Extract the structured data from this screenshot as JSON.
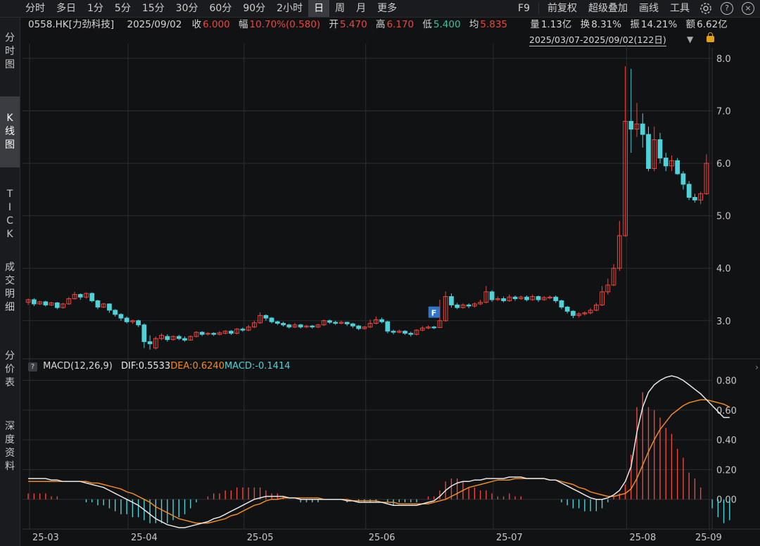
{
  "toolbar": {
    "timeframes": [
      "分时",
      "多日",
      "1分",
      "5分",
      "15分",
      "30分",
      "60分",
      "90分",
      "2小时",
      "日",
      "周",
      "月",
      "更多"
    ],
    "active_timeframe": "日",
    "right_tools": [
      "F9",
      "前复权",
      "超级叠加",
      "画线",
      "工具"
    ],
    "icons": [
      "gear-icon",
      "help-icon",
      "close-icon"
    ]
  },
  "quote": {
    "code": "0558.HK[力劲科技]",
    "date": "2025/09/02",
    "close_label": "收",
    "close": "6.000",
    "change_label": "幅",
    "change": "10.70%(0.580)",
    "open_label": "开",
    "open": "5.470",
    "high_label": "高",
    "high": "6.170",
    "low_label": "低",
    "low": "5.400",
    "avg_label": "均",
    "avg": "5.835",
    "volume_label": "量",
    "volume": "1.13亿",
    "turnover_label": "换",
    "turnover": "8.31%",
    "amplitude_label": "振",
    "amplitude": "14.21%",
    "amount_label": "额",
    "amount": "6.62亿"
  },
  "range_label": "2025/03/07-2025/09/02(122日)",
  "sidebar": [
    "分时图",
    "K线图",
    "TICK",
    "成交明细",
    "分价表",
    "深度资料"
  ],
  "sidebar_active": "K线图",
  "macd": {
    "name": "MACD(12,26,9)",
    "dif": "DIF:0.5533",
    "dea": "DEA:0.6240",
    "macd": "MACD:-0.1414"
  },
  "colors": {
    "up": "#f0453b",
    "down": "#4fd1d9",
    "dif": "#e8e8e8",
    "dea": "#f08a24",
    "grid": "#2c2d31"
  },
  "chart_data": [
    {
      "type": "candlestick",
      "title": "",
      "x_tick_labels": [
        "25-03",
        "25-04",
        "25-05",
        "25-06",
        "25-07",
        "25-08",
        "25-09"
      ],
      "y_ticks": [
        "8.0",
        "7.0",
        "6.0",
        "5.0",
        "4.0",
        "3.0"
      ],
      "ylim": [
        2.3,
        8.2
      ],
      "marker": "F",
      "candles": [
        [
          3.35,
          3.4,
          3.3,
          3.42
        ],
        [
          3.4,
          3.32,
          3.28,
          3.43
        ],
        [
          3.32,
          3.36,
          3.3,
          3.38
        ],
        [
          3.36,
          3.3,
          3.27,
          3.38
        ],
        [
          3.3,
          3.34,
          3.28,
          3.36
        ],
        [
          3.34,
          3.25,
          3.22,
          3.36
        ],
        [
          3.25,
          3.32,
          3.23,
          3.34
        ],
        [
          3.32,
          3.42,
          3.3,
          3.45
        ],
        [
          3.42,
          3.5,
          3.4,
          3.55
        ],
        [
          3.5,
          3.45,
          3.4,
          3.52
        ],
        [
          3.45,
          3.52,
          3.42,
          3.54
        ],
        [
          3.52,
          3.38,
          3.35,
          3.54
        ],
        [
          3.38,
          3.26,
          3.22,
          3.4
        ],
        [
          3.26,
          3.32,
          3.24,
          3.34
        ],
        [
          3.32,
          3.2,
          3.15,
          3.33
        ],
        [
          3.2,
          3.12,
          3.08,
          3.22
        ],
        [
          3.12,
          3.05,
          3.0,
          3.14
        ],
        [
          3.05,
          2.98,
          2.95,
          3.08
        ],
        [
          2.98,
          3.0,
          2.94,
          3.02
        ],
        [
          3.0,
          2.92,
          2.88,
          3.02
        ],
        [
          2.92,
          2.6,
          2.48,
          2.95
        ],
        [
          2.6,
          2.56,
          2.45,
          2.72
        ],
        [
          2.48,
          2.66,
          2.45,
          2.7
        ],
        [
          2.66,
          2.72,
          2.63,
          2.76
        ],
        [
          2.7,
          2.64,
          2.6,
          2.74
        ],
        [
          2.64,
          2.7,
          2.62,
          2.72
        ],
        [
          2.7,
          2.66,
          2.63,
          2.73
        ],
        [
          2.66,
          2.63,
          2.6,
          2.7
        ],
        [
          2.63,
          2.7,
          2.62,
          2.72
        ],
        [
          2.7,
          2.78,
          2.68,
          2.8
        ],
        [
          2.78,
          2.74,
          2.71,
          2.8
        ],
        [
          2.75,
          2.76,
          2.72,
          2.78
        ],
        [
          2.76,
          2.74,
          2.71,
          2.78
        ],
        [
          2.74,
          2.77,
          2.72,
          2.8
        ],
        [
          2.76,
          2.8,
          2.74,
          2.82
        ],
        [
          2.8,
          2.76,
          2.73,
          2.82
        ],
        [
          2.76,
          2.84,
          2.74,
          2.86
        ],
        [
          2.84,
          2.82,
          2.79,
          2.87
        ],
        [
          2.82,
          2.88,
          2.8,
          2.92
        ],
        [
          2.88,
          2.96,
          2.86,
          3.0
        ],
        [
          2.96,
          3.1,
          2.94,
          3.16
        ],
        [
          3.1,
          3.05,
          3.0,
          3.12
        ],
        [
          3.05,
          2.98,
          2.95,
          3.07
        ],
        [
          2.98,
          2.95,
          2.92,
          3.0
        ],
        [
          2.95,
          2.92,
          2.89,
          2.98
        ],
        [
          2.92,
          2.88,
          2.85,
          2.94
        ],
        [
          2.88,
          2.92,
          2.86,
          2.96
        ],
        [
          2.92,
          2.88,
          2.85,
          2.94
        ],
        [
          2.88,
          2.9,
          2.86,
          2.92
        ],
        [
          2.9,
          2.88,
          2.85,
          2.92
        ],
        [
          2.88,
          2.92,
          2.86,
          2.94
        ],
        [
          2.92,
          3.0,
          2.9,
          3.02
        ],
        [
          3.0,
          2.97,
          2.94,
          3.02
        ],
        [
          2.97,
          2.95,
          2.92,
          3.0
        ],
        [
          2.95,
          2.97,
          2.93,
          3.0
        ],
        [
          2.97,
          2.94,
          2.9,
          2.98
        ],
        [
          2.94,
          2.9,
          2.86,
          2.96
        ],
        [
          2.9,
          2.85,
          2.82,
          2.92
        ],
        [
          2.85,
          2.88,
          2.83,
          2.9
        ],
        [
          2.88,
          2.95,
          2.86,
          3.02
        ],
        [
          2.95,
          3.02,
          2.93,
          3.08
        ],
        [
          3.02,
          2.98,
          2.95,
          3.06
        ],
        [
          2.98,
          2.8,
          2.76,
          3.0
        ],
        [
          2.8,
          2.78,
          2.74,
          2.83
        ],
        [
          2.78,
          2.8,
          2.76,
          2.83
        ],
        [
          2.8,
          2.76,
          2.73,
          2.82
        ],
        [
          2.76,
          2.74,
          2.7,
          2.79
        ],
        [
          2.74,
          2.82,
          2.72,
          2.84
        ],
        [
          2.82,
          2.86,
          2.8,
          2.9
        ],
        [
          2.86,
          2.88,
          2.84,
          2.91
        ],
        [
          2.88,
          2.87,
          2.84,
          2.9
        ],
        [
          2.87,
          3.0,
          2.86,
          3.4
        ],
        [
          3.0,
          3.46,
          2.98,
          3.56
        ],
        [
          3.46,
          3.3,
          3.25,
          3.52
        ],
        [
          3.3,
          3.25,
          3.22,
          3.34
        ],
        [
          3.25,
          3.3,
          3.23,
          3.33
        ],
        [
          3.3,
          3.28,
          3.24,
          3.33
        ],
        [
          3.28,
          3.32,
          3.25,
          3.35
        ],
        [
          3.32,
          3.35,
          3.3,
          3.4
        ],
        [
          3.35,
          3.55,
          3.33,
          3.66
        ],
        [
          3.55,
          3.4,
          3.36,
          3.58
        ],
        [
          3.4,
          3.42,
          3.38,
          3.46
        ],
        [
          3.42,
          3.38,
          3.35,
          3.46
        ],
        [
          3.38,
          3.45,
          3.36,
          3.5
        ],
        [
          3.45,
          3.42,
          3.38,
          3.48
        ],
        [
          3.42,
          3.45,
          3.4,
          3.48
        ],
        [
          3.45,
          3.4,
          3.37,
          3.48
        ],
        [
          3.4,
          3.46,
          3.38,
          3.5
        ],
        [
          3.46,
          3.4,
          3.36,
          3.48
        ],
        [
          3.4,
          3.44,
          3.38,
          3.47
        ],
        [
          3.44,
          3.45,
          3.41,
          3.48
        ],
        [
          3.45,
          3.38,
          3.34,
          3.48
        ],
        [
          3.38,
          3.26,
          3.22,
          3.4
        ],
        [
          3.26,
          3.18,
          3.14,
          3.28
        ],
        [
          3.18,
          3.1,
          3.05,
          3.2
        ],
        [
          3.1,
          3.13,
          3.06,
          3.16
        ],
        [
          3.13,
          3.15,
          3.1,
          3.18
        ],
        [
          3.15,
          3.2,
          3.12,
          3.24
        ],
        [
          3.2,
          3.3,
          3.18,
          3.34
        ],
        [
          3.3,
          3.55,
          3.28,
          3.66
        ],
        [
          3.55,
          3.68,
          3.5,
          3.8
        ],
        [
          3.68,
          4.0,
          3.66,
          4.08
        ],
        [
          4.0,
          4.62,
          3.95,
          4.9
        ],
        [
          4.62,
          6.8,
          4.6,
          7.85
        ],
        [
          6.8,
          6.65,
          6.2,
          7.8
        ],
        [
          6.65,
          6.75,
          6.5,
          7.15
        ],
        [
          6.75,
          6.55,
          6.3,
          6.95
        ],
        [
          6.55,
          5.9,
          5.85,
          6.7
        ],
        [
          5.9,
          6.45,
          5.85,
          6.7
        ],
        [
          6.45,
          6.1,
          6.0,
          6.58
        ],
        [
          6.1,
          5.95,
          5.85,
          6.2
        ],
        [
          5.95,
          6.05,
          5.85,
          6.15
        ],
        [
          6.05,
          5.8,
          5.78,
          6.1
        ],
        [
          5.8,
          5.6,
          5.5,
          5.85
        ],
        [
          5.6,
          5.35,
          5.3,
          5.66
        ],
        [
          5.35,
          5.3,
          5.25,
          5.42
        ],
        [
          5.3,
          5.42,
          5.22,
          5.46
        ],
        [
          5.42,
          6.0,
          5.4,
          6.17
        ]
      ]
    },
    {
      "type": "macd",
      "title": "MACD(12,26,9)",
      "y_ticks": [
        "0.80",
        "0.60",
        "0.40",
        "0.20",
        "0.00"
      ],
      "ylim": [
        -0.2,
        0.85
      ],
      "dif": [
        0.14,
        0.14,
        0.14,
        0.14,
        0.13,
        0.13,
        0.12,
        0.12,
        0.12,
        0.12,
        0.11,
        0.1,
        0.09,
        0.08,
        0.06,
        0.04,
        0.02,
        0.0,
        -0.02,
        -0.04,
        -0.07,
        -0.1,
        -0.13,
        -0.15,
        -0.17,
        -0.18,
        -0.19,
        -0.19,
        -0.18,
        -0.17,
        -0.16,
        -0.15,
        -0.13,
        -0.12,
        -0.1,
        -0.08,
        -0.06,
        -0.04,
        -0.02,
        0.0,
        0.01,
        0.02,
        0.02,
        0.02,
        0.02,
        0.01,
        0.01,
        0.0,
        0.0,
        0.0,
        0.0,
        0.0,
        0.0,
        0.0,
        0.0,
        -0.01,
        -0.01,
        -0.02,
        -0.02,
        -0.02,
        -0.02,
        -0.02,
        -0.03,
        -0.04,
        -0.04,
        -0.04,
        -0.04,
        -0.04,
        -0.03,
        -0.02,
        -0.01,
        0.02,
        0.06,
        0.09,
        0.11,
        0.12,
        0.12,
        0.13,
        0.13,
        0.14,
        0.14,
        0.14,
        0.14,
        0.15,
        0.15,
        0.15,
        0.14,
        0.14,
        0.14,
        0.14,
        0.13,
        0.13,
        0.11,
        0.09,
        0.07,
        0.05,
        0.03,
        0.01,
        0.0,
        0.0,
        0.01,
        0.03,
        0.06,
        0.12,
        0.22,
        0.45,
        0.62,
        0.72,
        0.77,
        0.8,
        0.82,
        0.83,
        0.82,
        0.8,
        0.77,
        0.74,
        0.71,
        0.67,
        0.63,
        0.59,
        0.55,
        0.55
      ],
      "dea": [
        0.12,
        0.12,
        0.12,
        0.12,
        0.12,
        0.12,
        0.12,
        0.12,
        0.12,
        0.12,
        0.12,
        0.11,
        0.11,
        0.1,
        0.09,
        0.08,
        0.07,
        0.05,
        0.04,
        0.02,
        0.0,
        -0.02,
        -0.05,
        -0.07,
        -0.09,
        -0.11,
        -0.13,
        -0.14,
        -0.15,
        -0.16,
        -0.16,
        -0.16,
        -0.15,
        -0.14,
        -0.13,
        -0.11,
        -0.1,
        -0.08,
        -0.06,
        -0.04,
        -0.03,
        -0.01,
        0.0,
        0.0,
        0.01,
        0.01,
        0.01,
        0.01,
        0.01,
        0.01,
        0.01,
        0.0,
        0.0,
        0.0,
        0.0,
        0.0,
        -0.01,
        -0.01,
        -0.01,
        -0.01,
        -0.01,
        -0.02,
        -0.02,
        -0.02,
        -0.03,
        -0.03,
        -0.03,
        -0.03,
        -0.03,
        -0.03,
        -0.02,
        -0.01,
        0.0,
        0.02,
        0.04,
        0.06,
        0.08,
        0.09,
        0.1,
        0.11,
        0.12,
        0.13,
        0.13,
        0.13,
        0.14,
        0.14,
        0.14,
        0.14,
        0.14,
        0.14,
        0.13,
        0.13,
        0.12,
        0.11,
        0.1,
        0.08,
        0.07,
        0.05,
        0.04,
        0.03,
        0.02,
        0.02,
        0.03,
        0.04,
        0.07,
        0.14,
        0.23,
        0.32,
        0.4,
        0.47,
        0.52,
        0.57,
        0.6,
        0.63,
        0.65,
        0.66,
        0.67,
        0.67,
        0.66,
        0.65,
        0.64,
        0.62
      ],
      "macd_bar": [
        0.04,
        0.04,
        0.04,
        0.04,
        0.02,
        0.02,
        0.0,
        0.0,
        0.0,
        0.0,
        -0.02,
        -0.02,
        -0.04,
        -0.04,
        -0.06,
        -0.08,
        -0.1,
        -0.1,
        -0.12,
        -0.12,
        -0.14,
        -0.16,
        -0.16,
        -0.16,
        -0.16,
        -0.14,
        -0.12,
        -0.1,
        -0.06,
        -0.02,
        0.0,
        0.02,
        0.04,
        0.04,
        0.06,
        0.06,
        0.08,
        0.08,
        0.08,
        0.08,
        0.08,
        0.06,
        0.04,
        0.04,
        0.02,
        0.0,
        0.0,
        -0.02,
        -0.02,
        -0.02,
        -0.02,
        0.0,
        0.0,
        0.0,
        0.0,
        -0.02,
        0.0,
        -0.02,
        -0.02,
        -0.02,
        -0.02,
        0.0,
        -0.02,
        -0.04,
        -0.02,
        -0.02,
        -0.02,
        -0.02,
        0.0,
        0.02,
        0.02,
        0.06,
        0.12,
        0.14,
        0.14,
        0.12,
        0.08,
        0.08,
        0.06,
        0.06,
        0.04,
        0.02,
        0.02,
        0.04,
        0.02,
        0.02,
        0.0,
        0.0,
        0.0,
        0.0,
        0.0,
        0.0,
        -0.02,
        -0.04,
        -0.06,
        -0.06,
        -0.08,
        -0.08,
        -0.08,
        -0.06,
        -0.02,
        0.02,
        0.04,
        0.1,
        0.3,
        0.62,
        0.72,
        0.62,
        0.6,
        0.55,
        0.48,
        0.44,
        0.34,
        0.28,
        0.18,
        0.14,
        0.08,
        0.0,
        -0.06,
        -0.12,
        -0.16,
        -0.14
      ]
    }
  ]
}
